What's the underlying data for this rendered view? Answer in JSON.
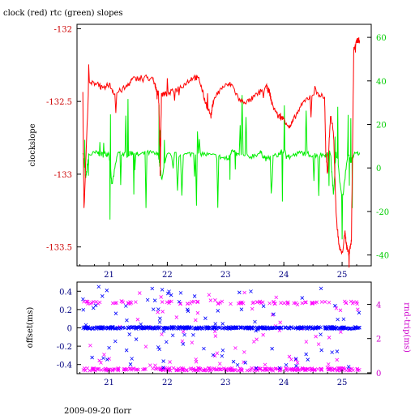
{
  "colors": {
    "clock": "#ff0000",
    "rtc": "#00ee00",
    "offset": "#0000ff",
    "roundtrip": "#ff00ff",
    "axis": "#000000",
    "right_axis_top": "#00cc00",
    "right_axis_bottom": "#cc00cc"
  },
  "chart_data": [
    {
      "type": "line",
      "title": "clock (red) rtc (green) slopes",
      "xlabel": "",
      "x_ticks": [
        21,
        22,
        23,
        24,
        25
      ],
      "xlim": [
        20.45,
        25.5
      ],
      "y_left": {
        "label": "clockslope",
        "lim": [
          -133.63,
          -131.97
        ],
        "ticks": [
          -132,
          -132.5,
          -133,
          -133.5
        ],
        "tick_labels": [
          "-132",
          "-132.5",
          "-133",
          "-133.5"
        ]
      },
      "y_right": {
        "label": "",
        "lim": [
          -45,
          66
        ],
        "ticks": [
          60,
          40,
          20,
          0,
          -20,
          -40
        ],
        "tick_labels": [
          "60",
          "40",
          "20",
          "0",
          "-20",
          "-40"
        ]
      },
      "series": [
        {
          "axis": "left",
          "color": "#ff0000",
          "x": [
            20.55,
            20.57,
            20.65,
            20.8,
            20.9,
            21.0,
            21.1,
            21.3,
            21.4,
            21.6,
            21.75,
            21.8,
            21.85,
            21.88,
            21.9,
            22.0,
            22.15,
            22.3,
            22.45,
            22.55,
            22.65,
            22.75,
            22.8,
            22.95,
            23.1,
            23.25,
            23.4,
            23.55,
            23.7,
            23.75,
            23.8,
            23.9,
            24.0,
            24.1,
            24.2,
            24.35,
            24.55,
            24.7,
            24.72,
            24.75,
            24.8,
            24.85,
            24.9,
            24.95,
            25.0,
            25.05,
            25.08,
            25.12,
            25.16,
            25.2,
            25.25,
            25.3
          ],
          "y": [
            -132.45,
            -133.25,
            -132.38,
            -132.37,
            -132.42,
            -132.38,
            -132.45,
            -132.4,
            -132.35,
            -132.33,
            -132.35,
            -132.4,
            -132.45,
            -132.95,
            -132.45,
            -132.45,
            -132.42,
            -132.38,
            -132.33,
            -132.35,
            -132.5,
            -132.6,
            -132.48,
            -132.4,
            -132.38,
            -132.5,
            -132.5,
            -132.45,
            -132.4,
            -132.43,
            -132.52,
            -132.6,
            -132.62,
            -132.68,
            -132.6,
            -132.5,
            -132.43,
            -132.48,
            -132.85,
            -133.0,
            -132.6,
            -132.7,
            -133.3,
            -133.5,
            -133.55,
            -133.4,
            -133.5,
            -133.55,
            -133.45,
            -132.15,
            -132.08,
            -132.08
          ]
        },
        {
          "axis": "right",
          "color": "#00ee00",
          "x": [
            20.55,
            20.6,
            20.65,
            20.8,
            20.9,
            21.0,
            21.05,
            21.15,
            21.3,
            21.4,
            21.5,
            21.7,
            21.85,
            21.9,
            22.0,
            22.3,
            22.5,
            22.7,
            22.9,
            23.05,
            23.1,
            23.2,
            23.4,
            23.6,
            23.7,
            23.9,
            24.0,
            24.1,
            24.3,
            24.5,
            24.7,
            24.8,
            24.85,
            24.9,
            25.0,
            25.1,
            25.15,
            25.2,
            25.3
          ],
          "y": [
            8,
            -5,
            6,
            7,
            6,
            7,
            -8,
            7,
            6,
            7,
            6,
            7,
            6,
            -5,
            6,
            6,
            7,
            6,
            5,
            4,
            8,
            6,
            5,
            7,
            4,
            6,
            8,
            5,
            7,
            6,
            6,
            7,
            -12,
            8,
            -15,
            7,
            3,
            6,
            7
          ]
        }
      ]
    },
    {
      "type": "scatter",
      "title": "",
      "xlabel": "",
      "x_ticks": [
        21,
        22,
        23,
        24,
        25
      ],
      "xlim": [
        20.45,
        25.5
      ],
      "y_left": {
        "label": "offset(ms)",
        "lim": [
          -0.5,
          0.5
        ],
        "ticks": [
          0.4,
          0.2,
          0,
          -0.2,
          -0.4
        ],
        "tick_labels": [
          "0.4",
          "0.2",
          "0",
          "-0.2",
          "-0.4"
        ]
      },
      "y_right": {
        "label": "rnd-trip(ms)",
        "lim": [
          -0.05,
          5.3
        ],
        "ticks": [
          4,
          2,
          0
        ],
        "tick_labels": [
          "4",
          "2",
          "0"
        ]
      },
      "series": [
        {
          "axis": "left",
          "color": "#0000ff",
          "baseline": 0.0,
          "x_range": [
            20.55,
            25.3
          ]
        },
        {
          "axis": "right",
          "color": "#ff00ff",
          "levels": [
            0.2,
            4.1
          ],
          "x_range": [
            20.55,
            25.3
          ]
        }
      ]
    }
  ],
  "footer": "2009-09-20 florr"
}
